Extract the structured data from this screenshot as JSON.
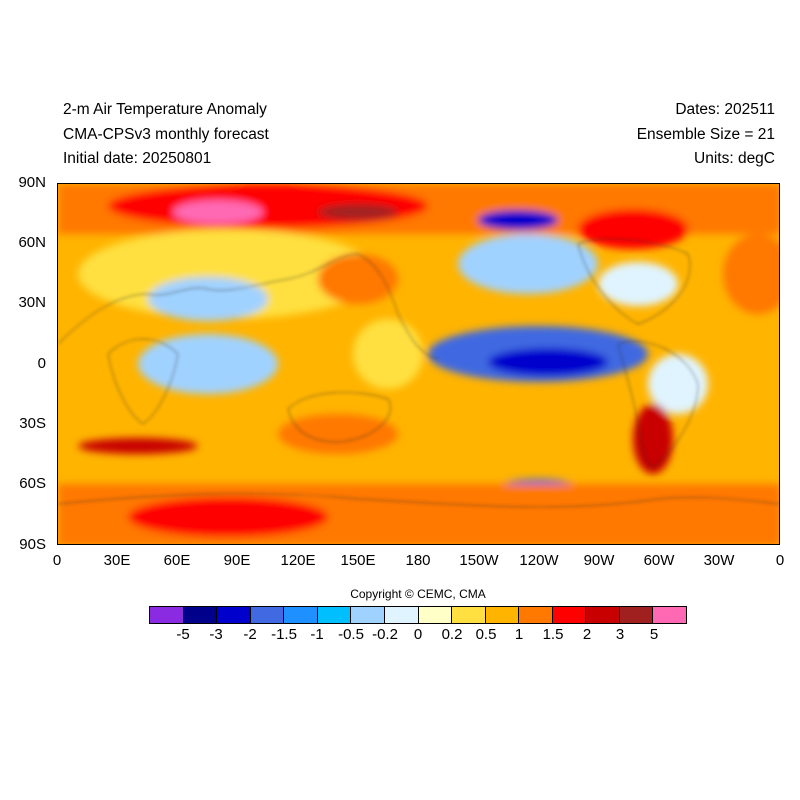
{
  "header": {
    "title": "2-m Air Temperature Anomaly",
    "subtitle": "CMA-CPSv3 monthly forecast",
    "initial_date": "Initial date: 20250801",
    "dates": "Dates: 202511",
    "ensemble": "Ensemble Size = 21",
    "units": "Units: degC"
  },
  "map": {
    "lat_labels": [
      "90N",
      "60N",
      "30N",
      "0",
      "30S",
      "60S",
      "90S"
    ],
    "lon_labels": [
      "0",
      "30E",
      "60E",
      "90E",
      "120E",
      "150E",
      "180",
      "150W",
      "120W",
      "90W",
      "60W",
      "30W",
      "0"
    ]
  },
  "copyright": "Copyright © CEMC, CMA",
  "colorbar": {
    "colors": [
      "#8a2be2",
      "#00008b",
      "#0000cd",
      "#4169e1",
      "#1e90ff",
      "#00bfff",
      "#a0d2ff",
      "#e0f4ff",
      "#ffffc8",
      "#ffe040",
      "#ffb400",
      "#ff7800",
      "#ff0000",
      "#c80000",
      "#a02020",
      "#ff69b4"
    ],
    "labels": [
      "-5",
      "-3",
      "-2",
      "-1.5",
      "-1",
      "-0.5",
      "-0.2",
      "0",
      "0.2",
      "0.5",
      "1",
      "1.5",
      "2",
      "3",
      "5"
    ]
  }
}
